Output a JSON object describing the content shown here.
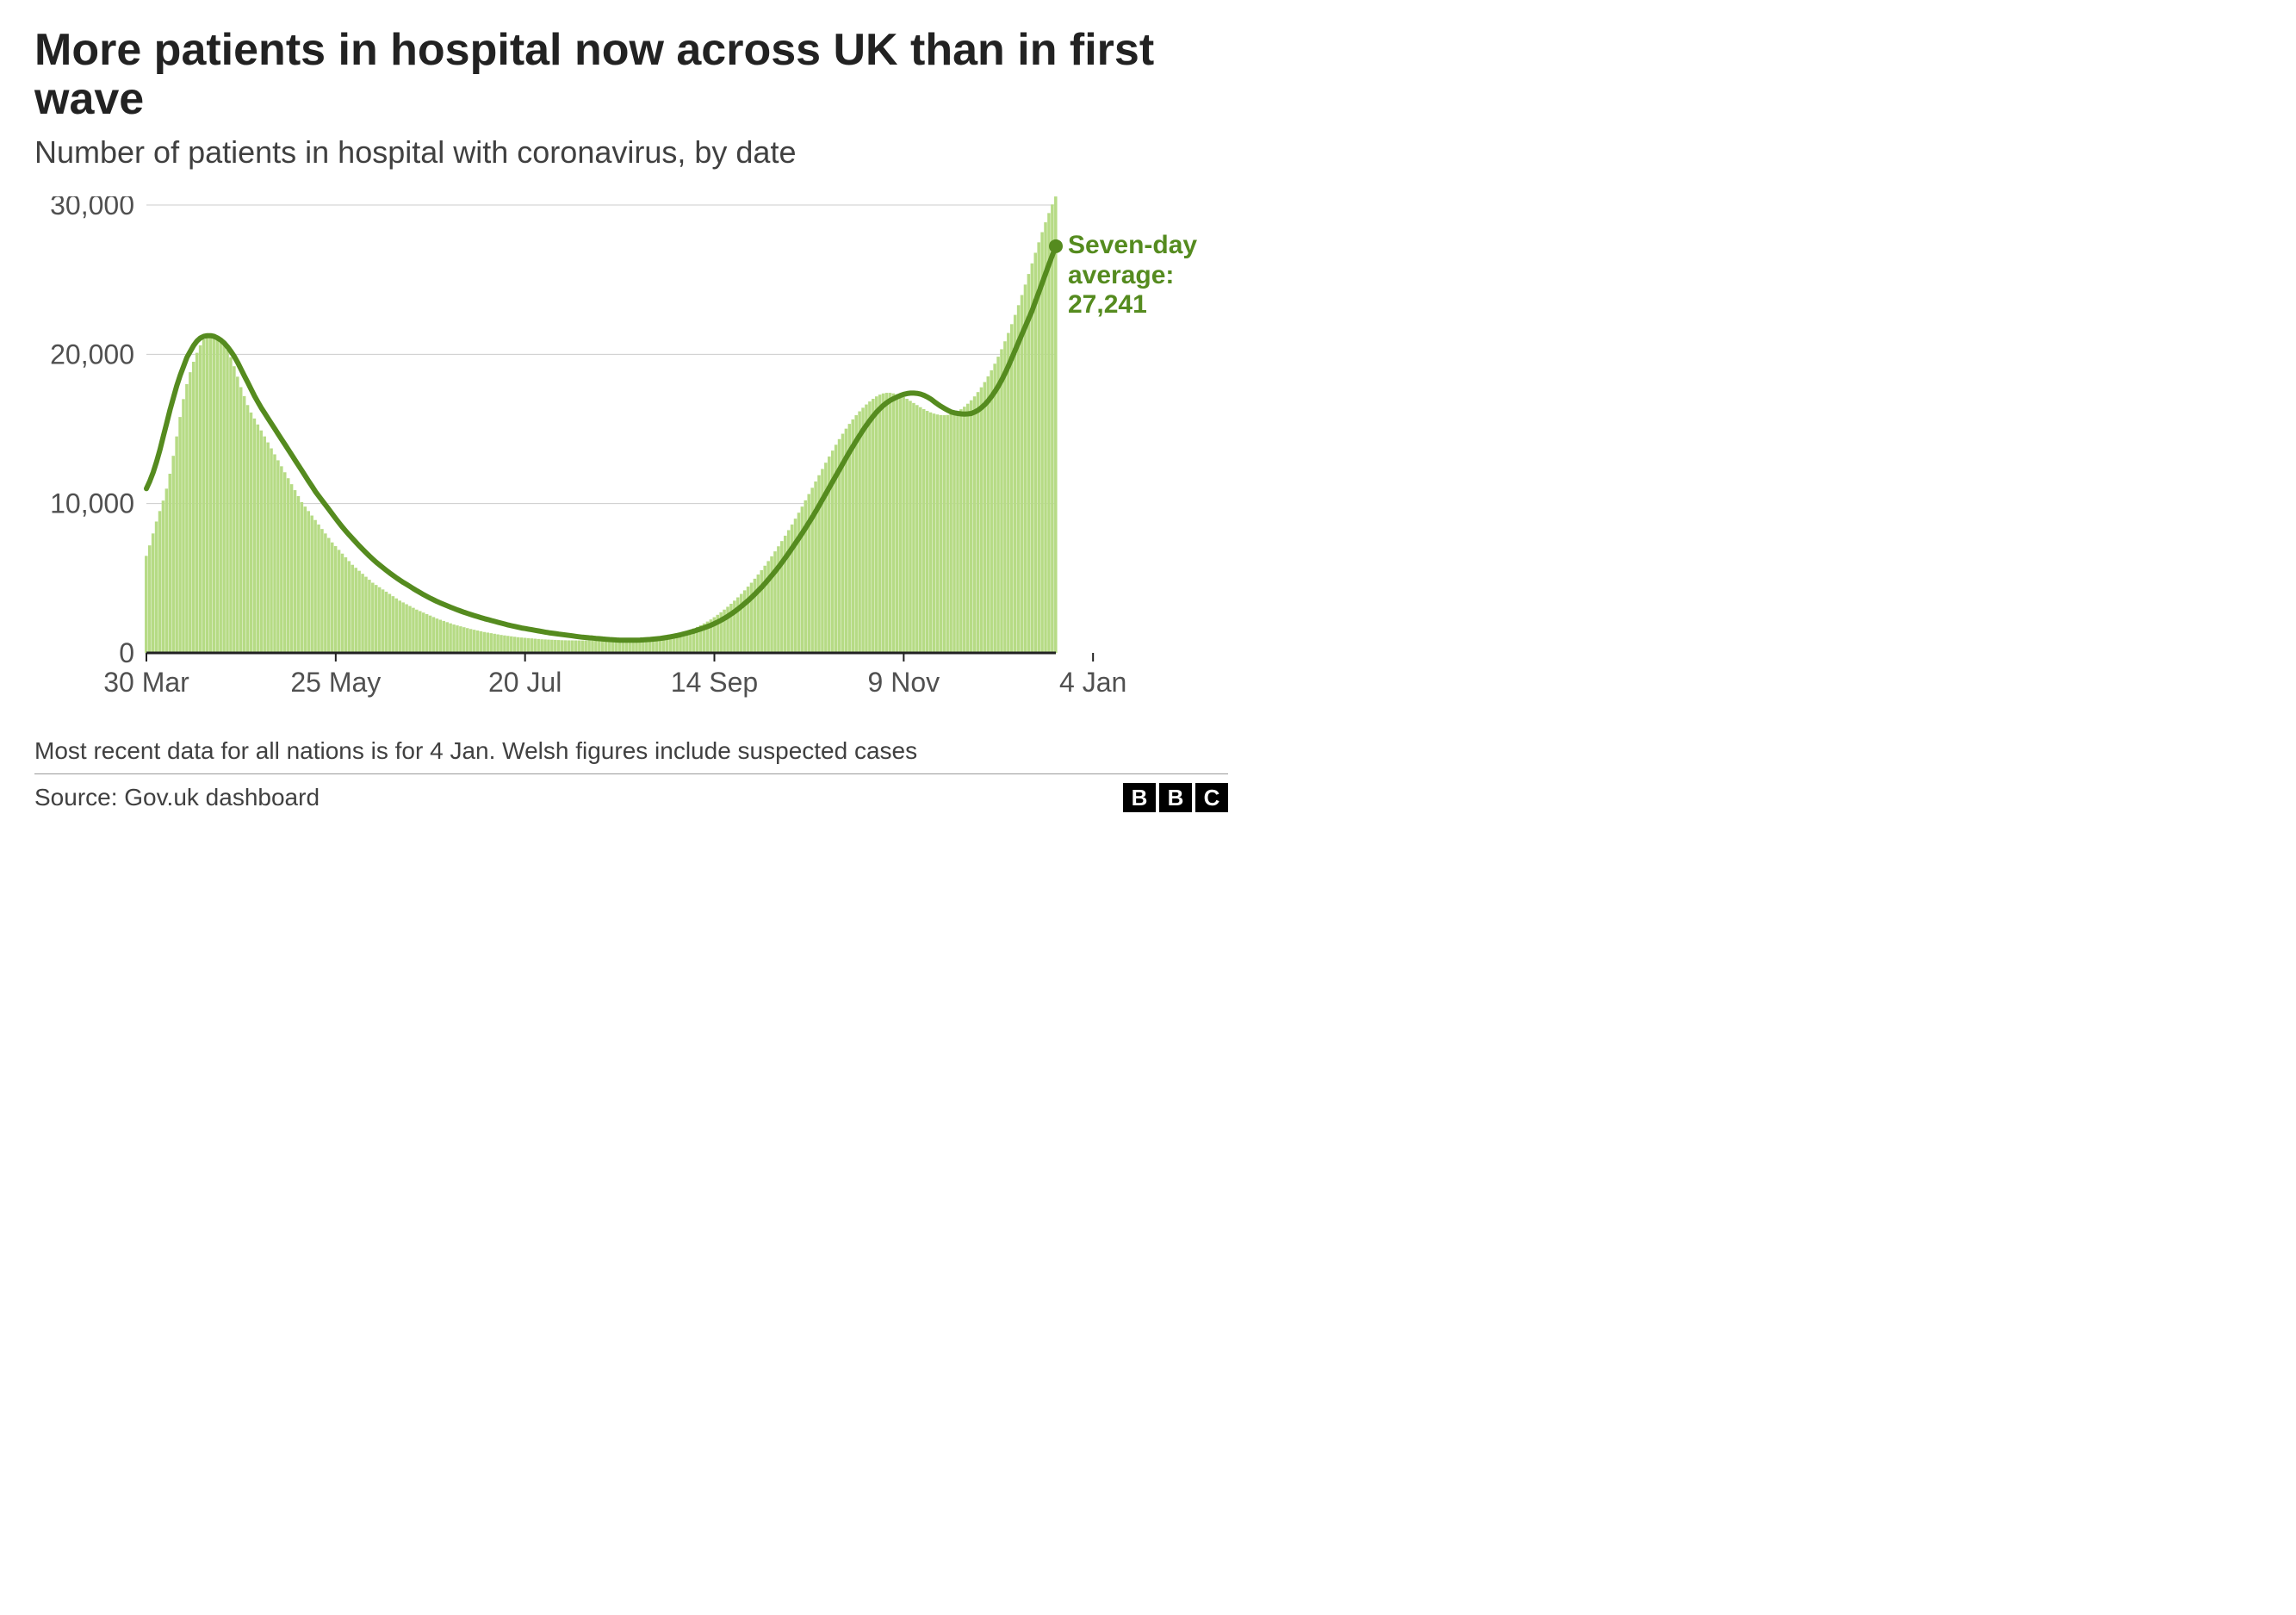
{
  "title": "More patients in hospital now across UK than in first wave",
  "subtitle": "Number of patients in hospital with coronavirus, by date",
  "footnote": "Most recent data for all nations is for 4 Jan. Welsh figures include suspected cases",
  "source": "Source: Gov.uk dashboard",
  "logo_letters": [
    "B",
    "B",
    "C"
  ],
  "chart": {
    "type": "line+bar",
    "ylim": [
      0,
      30000
    ],
    "yticks": [
      0,
      10000,
      20000,
      30000
    ],
    "ytick_labels": [
      "0",
      "10,000",
      "20,000",
      "30,000"
    ],
    "xtick_labels": [
      "30 Mar",
      "25 May",
      "20 Jul",
      "14 Sep",
      "9 Nov",
      "4 Jan"
    ],
    "xtick_positions": [
      0,
      56,
      112,
      168,
      224,
      280
    ],
    "bar_color": "#b6db85",
    "line_color": "#558b1f",
    "line_width": 6,
    "axis_color": "#222222",
    "grid_color": "#cccccc",
    "tick_label_color": "#505050",
    "tick_label_fontsize": 32,
    "background_color": "#ffffff",
    "callout": {
      "label_line1": "Seven-day",
      "label_line2": "average:",
      "label_line3": "27,241",
      "color": "#558b1f",
      "fontsize": 30,
      "dot_radius": 8,
      "dot_value": 27241
    },
    "daily_values": [
      6500,
      7200,
      8000,
      8800,
      9500,
      10200,
      11000,
      12000,
      13200,
      14500,
      15800,
      17000,
      18000,
      18800,
      19500,
      20100,
      20600,
      21000,
      21200,
      21300,
      21300,
      21200,
      21000,
      20700,
      20300,
      19800,
      19200,
      18500,
      17800,
      17200,
      16600,
      16100,
      15700,
      15300,
      14900,
      14500,
      14100,
      13700,
      13300,
      12900,
      12500,
      12100,
      11700,
      11300,
      10900,
      10500,
      10100,
      9800,
      9500,
      9200,
      8900,
      8600,
      8300,
      8000,
      7700,
      7400,
      7150,
      6900,
      6650,
      6400,
      6150,
      5900,
      5700,
      5500,
      5300,
      5100,
      4900,
      4700,
      4550,
      4400,
      4250,
      4100,
      3950,
      3800,
      3650,
      3500,
      3380,
      3260,
      3140,
      3020,
      2900,
      2800,
      2700,
      2600,
      2500,
      2400,
      2300,
      2220,
      2140,
      2060,
      1980,
      1900,
      1840,
      1780,
      1720,
      1660,
      1600,
      1550,
      1500,
      1450,
      1400,
      1360,
      1320,
      1280,
      1240,
      1200,
      1170,
      1140,
      1110,
      1080,
      1050,
      1030,
      1010,
      990,
      970,
      950,
      930,
      910,
      900,
      890,
      880,
      870,
      860,
      850,
      845,
      840,
      838,
      836,
      834,
      832,
      830,
      828,
      826,
      825,
      824,
      823,
      822,
      821,
      820,
      822,
      824,
      828,
      832,
      838,
      846,
      856,
      868,
      882,
      900,
      920,
      945,
      975,
      1010,
      1050,
      1095,
      1145,
      1200,
      1260,
      1325,
      1395,
      1470,
      1550,
      1640,
      1740,
      1850,
      1970,
      2100,
      2240,
      2390,
      2550,
      2720,
      2900,
      3090,
      3290,
      3500,
      3720,
      3950,
      4190,
      4440,
      4700,
      4970,
      5250,
      5540,
      5840,
      6150,
      6470,
      6800,
      7140,
      7490,
      7850,
      8220,
      8600,
      8990,
      9390,
      9800,
      10220,
      10640,
      11060,
      11480,
      11900,
      12320,
      12740,
      13150,
      13550,
      13940,
      14320,
      14680,
      15020,
      15340,
      15640,
      15920,
      16180,
      16420,
      16640,
      16840,
      17020,
      17180,
      17300,
      17380,
      17420,
      17420,
      17380,
      17320,
      17240,
      17140,
      17020,
      16880,
      16740,
      16600,
      16460,
      16330,
      16210,
      16110,
      16030,
      15970,
      15930,
      15920,
      15940,
      15990,
      16070,
      16180,
      16320,
      16490,
      16690,
      16920,
      17180,
      17470,
      17790,
      18140,
      18520,
      18930,
      19370,
      19840,
      20340,
      20870,
      21430,
      22020,
      22640,
      23290,
      23970,
      24670,
      25380,
      26090,
      26800,
      27500,
      28180,
      28840,
      29460,
      30040,
      30570
    ],
    "avg_values": [
      11000,
      11500,
      12100,
      12800,
      13600,
      14500,
      15400,
      16300,
      17100,
      17900,
      18600,
      19200,
      19800,
      20200,
      20600,
      20900,
      21100,
      21200,
      21250,
      21250,
      21200,
      21100,
      20950,
      20750,
      20500,
      20200,
      19850,
      19450,
      19000,
      18550,
      18100,
      17650,
      17200,
      16800,
      16400,
      16050,
      15700,
      15350,
      15000,
      14650,
      14300,
      13950,
      13600,
      13250,
      12900,
      12550,
      12200,
      11850,
      11500,
      11150,
      10800,
      10500,
      10200,
      9900,
      9600,
      9300,
      9000,
      8700,
      8420,
      8150,
      7900,
      7650,
      7400,
      7160,
      6930,
      6700,
      6480,
      6270,
      6070,
      5880,
      5700,
      5520,
      5350,
      5180,
      5020,
      4870,
      4720,
      4580,
      4440,
      4300,
      4160,
      4030,
      3900,
      3780,
      3660,
      3550,
      3440,
      3340,
      3240,
      3150,
      3060,
      2970,
      2880,
      2800,
      2720,
      2640,
      2570,
      2500,
      2430,
      2360,
      2290,
      2230,
      2170,
      2110,
      2050,
      1990,
      1930,
      1870,
      1820,
      1770,
      1720,
      1670,
      1630,
      1590,
      1550,
      1510,
      1470,
      1430,
      1390,
      1350,
      1320,
      1290,
      1260,
      1230,
      1200,
      1170,
      1140,
      1110,
      1080,
      1050,
      1030,
      1010,
      990,
      970,
      950,
      930,
      910,
      895,
      880,
      865,
      855,
      850,
      848,
      848,
      850,
      855,
      862,
      873,
      886,
      902,
      922,
      945,
      972,
      1003,
      1038,
      1077,
      1120,
      1167,
      1218,
      1273,
      1332,
      1395,
      1462,
      1533,
      1608,
      1687,
      1770,
      1860,
      1960,
      2070,
      2190,
      2320,
      2460,
      2610,
      2770,
      2940,
      3120,
      3310,
      3510,
      3720,
      3940,
      4170,
      4410,
      4660,
      4920,
      5190,
      5470,
      5760,
      6060,
      6370,
      6690,
      7020,
      7350,
      7690,
      8030,
      8380,
      8740,
      9110,
      9490,
      9880,
      10280,
      10680,
      11080,
      11480,
      11880,
      12280,
      12680,
      13080,
      13470,
      13850,
      14220,
      14580,
      14930,
      15260,
      15570,
      15860,
      16130,
      16370,
      16580,
      16760,
      16910,
      17030,
      17140,
      17240,
      17320,
      17370,
      17400,
      17400,
      17380,
      17330,
      17250,
      17140,
      17000,
      16830,
      16670,
      16520,
      16380,
      16250,
      16140,
      16080,
      16040,
      16010,
      16000,
      16010,
      16040,
      16130,
      16260,
      16430,
      16640,
      16890,
      17180,
      17510,
      17880,
      18290,
      18740,
      19230,
      19760,
      20290,
      20820,
      21350,
      21880,
      22410,
      22940,
      23560,
      24180,
      24800,
      25420,
      26040,
      26650,
      27241
    ]
  }
}
